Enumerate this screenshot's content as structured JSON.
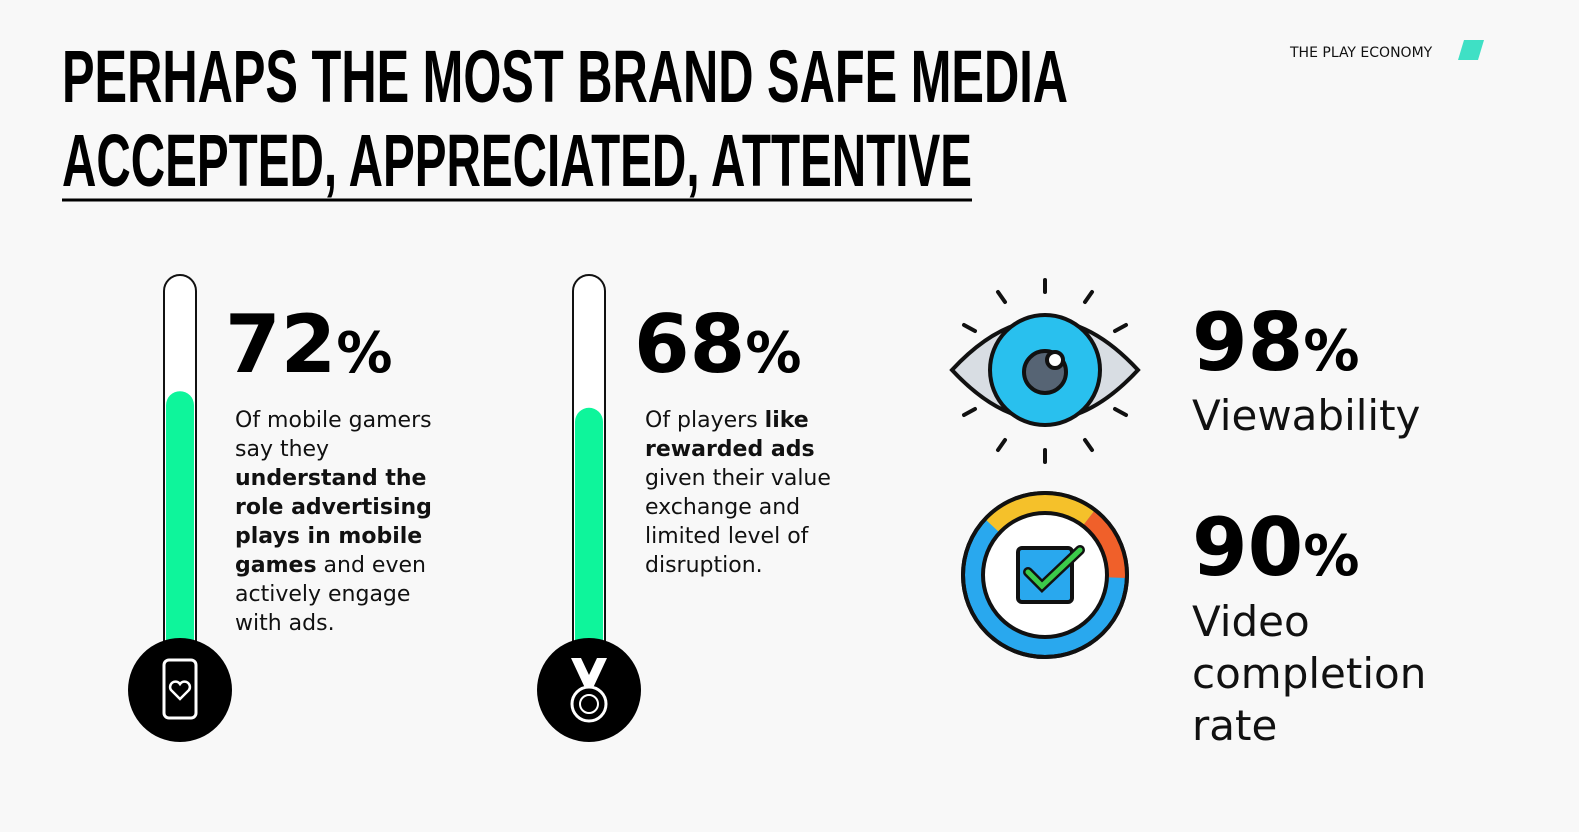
{
  "header": {
    "title_lines": [
      "PERHAPS THE MOST BRAND SAFE MEDIA",
      "ACCEPTED, APPRECIATED, ATTENTIVE"
    ],
    "brand": "THE PLAY ECONOMY"
  },
  "stats": [
    {
      "value": 72,
      "unit": "%",
      "text": [
        {
          "t": "Of mobile gamers say they "
        },
        {
          "t": "understand the role advertising plays in mobile games",
          "bold": true
        },
        {
          "t": " and even actively engage with ads."
        }
      ]
    },
    {
      "value": 68,
      "unit": "%",
      "text": [
        {
          "t": "Of players "
        },
        {
          "t": "like rewarded ads",
          "bold": true
        },
        {
          "t": " given their value exchange and limited level of disruption."
        }
      ]
    },
    {
      "value": 98,
      "unit": "%",
      "text": [
        {
          "t": "Viewability"
        }
      ]
    },
    {
      "value": 90,
      "unit": "%",
      "text": [
        {
          "t": "Video completion rate"
        }
      ]
    }
  ]
}
